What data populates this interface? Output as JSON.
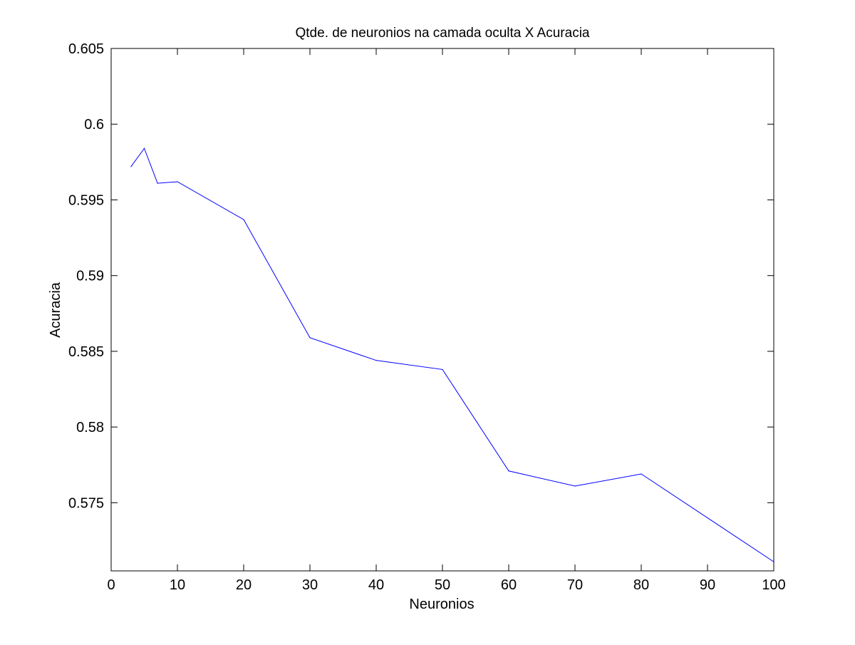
{
  "chart_data": {
    "type": "line",
    "title": "Qtde. de neuronios na camada oculta X Acuracia",
    "xlabel": "Neuronios",
    "ylabel": "Acuracia",
    "xlim": [
      0,
      100
    ],
    "ylim": [
      0.5705,
      0.605
    ],
    "xticks": [
      0,
      10,
      20,
      30,
      40,
      50,
      60,
      70,
      80,
      90,
      100
    ],
    "yticks": [
      0.575,
      0.58,
      0.585,
      0.59,
      0.595,
      0.6,
      0.605
    ],
    "xtick_labels": [
      "0",
      "10",
      "20",
      "30",
      "40",
      "50",
      "60",
      "70",
      "80",
      "90",
      "100"
    ],
    "ytick_labels": [
      "0.575",
      "0.58",
      "0.585",
      "0.59",
      "0.595",
      "0.6",
      "0.605"
    ],
    "grid": false,
    "line_color": "#0000ff",
    "series": [
      {
        "x": [
          3,
          5,
          7,
          10,
          20,
          30,
          40,
          50,
          60,
          70,
          80,
          100
        ],
        "y": [
          0.5972,
          0.5984,
          0.5961,
          0.5962,
          0.5937,
          0.5859,
          0.5844,
          0.5838,
          0.5771,
          0.5761,
          0.5769,
          0.5711
        ]
      }
    ]
  }
}
